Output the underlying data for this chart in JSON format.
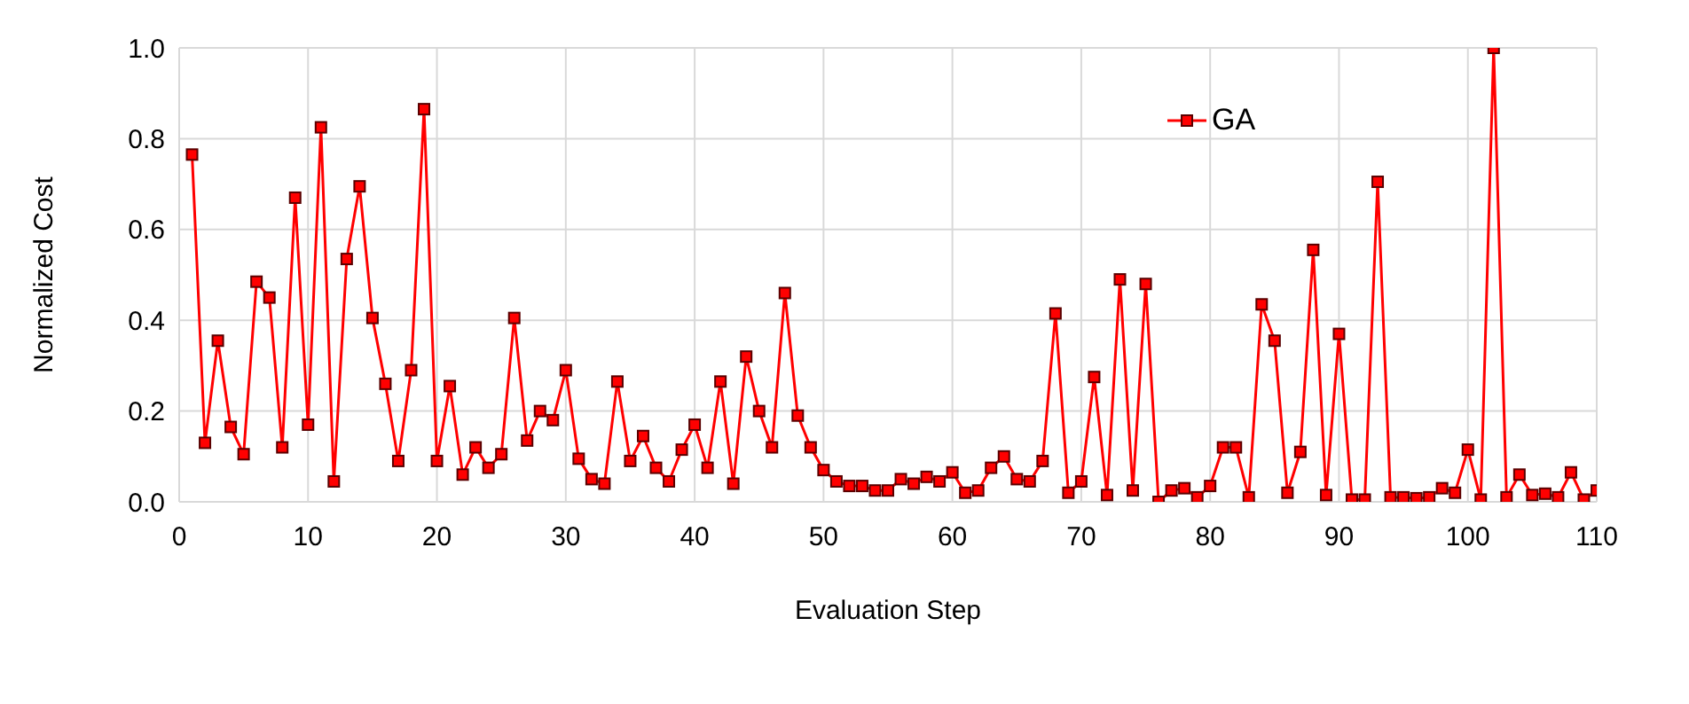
{
  "chart_data": {
    "type": "line",
    "xlabel": "Evaluation Step",
    "ylabel": "Normalized Cost",
    "x": [
      1,
      2,
      3,
      4,
      5,
      6,
      7,
      8,
      9,
      10,
      11,
      12,
      13,
      14,
      15,
      16,
      17,
      18,
      19,
      20,
      21,
      22,
      23,
      24,
      25,
      26,
      27,
      28,
      29,
      30,
      31,
      32,
      33,
      34,
      35,
      36,
      37,
      38,
      39,
      40,
      41,
      42,
      43,
      44,
      45,
      46,
      47,
      48,
      49,
      50,
      51,
      52,
      53,
      54,
      55,
      56,
      57,
      58,
      59,
      60,
      61,
      62,
      63,
      64,
      65,
      66,
      67,
      68,
      69,
      70,
      71,
      72,
      73,
      74,
      75,
      76,
      77,
      78,
      79,
      80,
      81,
      82,
      83,
      84,
      85,
      86,
      87,
      88,
      89,
      90,
      91,
      92,
      93,
      94,
      95,
      96,
      97,
      98,
      99,
      100,
      101,
      102,
      103,
      104,
      105,
      106,
      107,
      108,
      109,
      110
    ],
    "series": [
      {
        "name": "GA",
        "color": "#ff0000",
        "values": [
          0.765,
          0.13,
          0.355,
          0.165,
          0.105,
          0.485,
          0.45,
          0.12,
          0.67,
          0.17,
          0.825,
          0.045,
          0.535,
          0.695,
          0.405,
          0.26,
          0.09,
          0.29,
          0.865,
          0.09,
          0.255,
          0.06,
          0.12,
          0.075,
          0.105,
          0.405,
          0.135,
          0.2,
          0.18,
          0.29,
          0.095,
          0.05,
          0.04,
          0.265,
          0.09,
          0.145,
          0.075,
          0.045,
          0.115,
          0.17,
          0.075,
          0.265,
          0.04,
          0.32,
          0.2,
          0.12,
          0.46,
          0.19,
          0.12,
          0.07,
          0.045,
          0.035,
          0.035,
          0.025,
          0.025,
          0.05,
          0.04,
          0.055,
          0.045,
          0.065,
          0.02,
          0.025,
          0.075,
          0.1,
          0.05,
          0.045,
          0.09,
          0.415,
          0.02,
          0.045,
          0.275,
          0.015,
          0.49,
          0.025,
          0.48,
          0.0,
          0.025,
          0.03,
          0.01,
          0.035,
          0.12,
          0.12,
          0.01,
          0.435,
          0.355,
          0.02,
          0.11,
          0.555,
          0.015,
          0.37,
          0.005,
          0.005,
          0.705,
          0.01,
          0.01,
          0.008,
          0.01,
          0.03,
          0.02,
          0.115,
          0.005,
          1.0,
          0.01,
          0.06,
          0.015,
          0.018,
          0.01,
          0.065,
          0.005,
          0.025
        ]
      }
    ],
    "xlim": [
      0,
      110
    ],
    "xticks": [
      0,
      10,
      20,
      30,
      40,
      50,
      60,
      70,
      80,
      90,
      100,
      110
    ],
    "ylim": [
      0,
      1
    ],
    "yticks": [
      {
        "value": 0,
        "label": "0.0"
      },
      0.2,
      0.4,
      0.6,
      0.8,
      {
        "value": 1,
        "label": "1.0"
      }
    ],
    "grid": true,
    "legend": "top right",
    "marker": "square",
    "line_style": "solid"
  }
}
